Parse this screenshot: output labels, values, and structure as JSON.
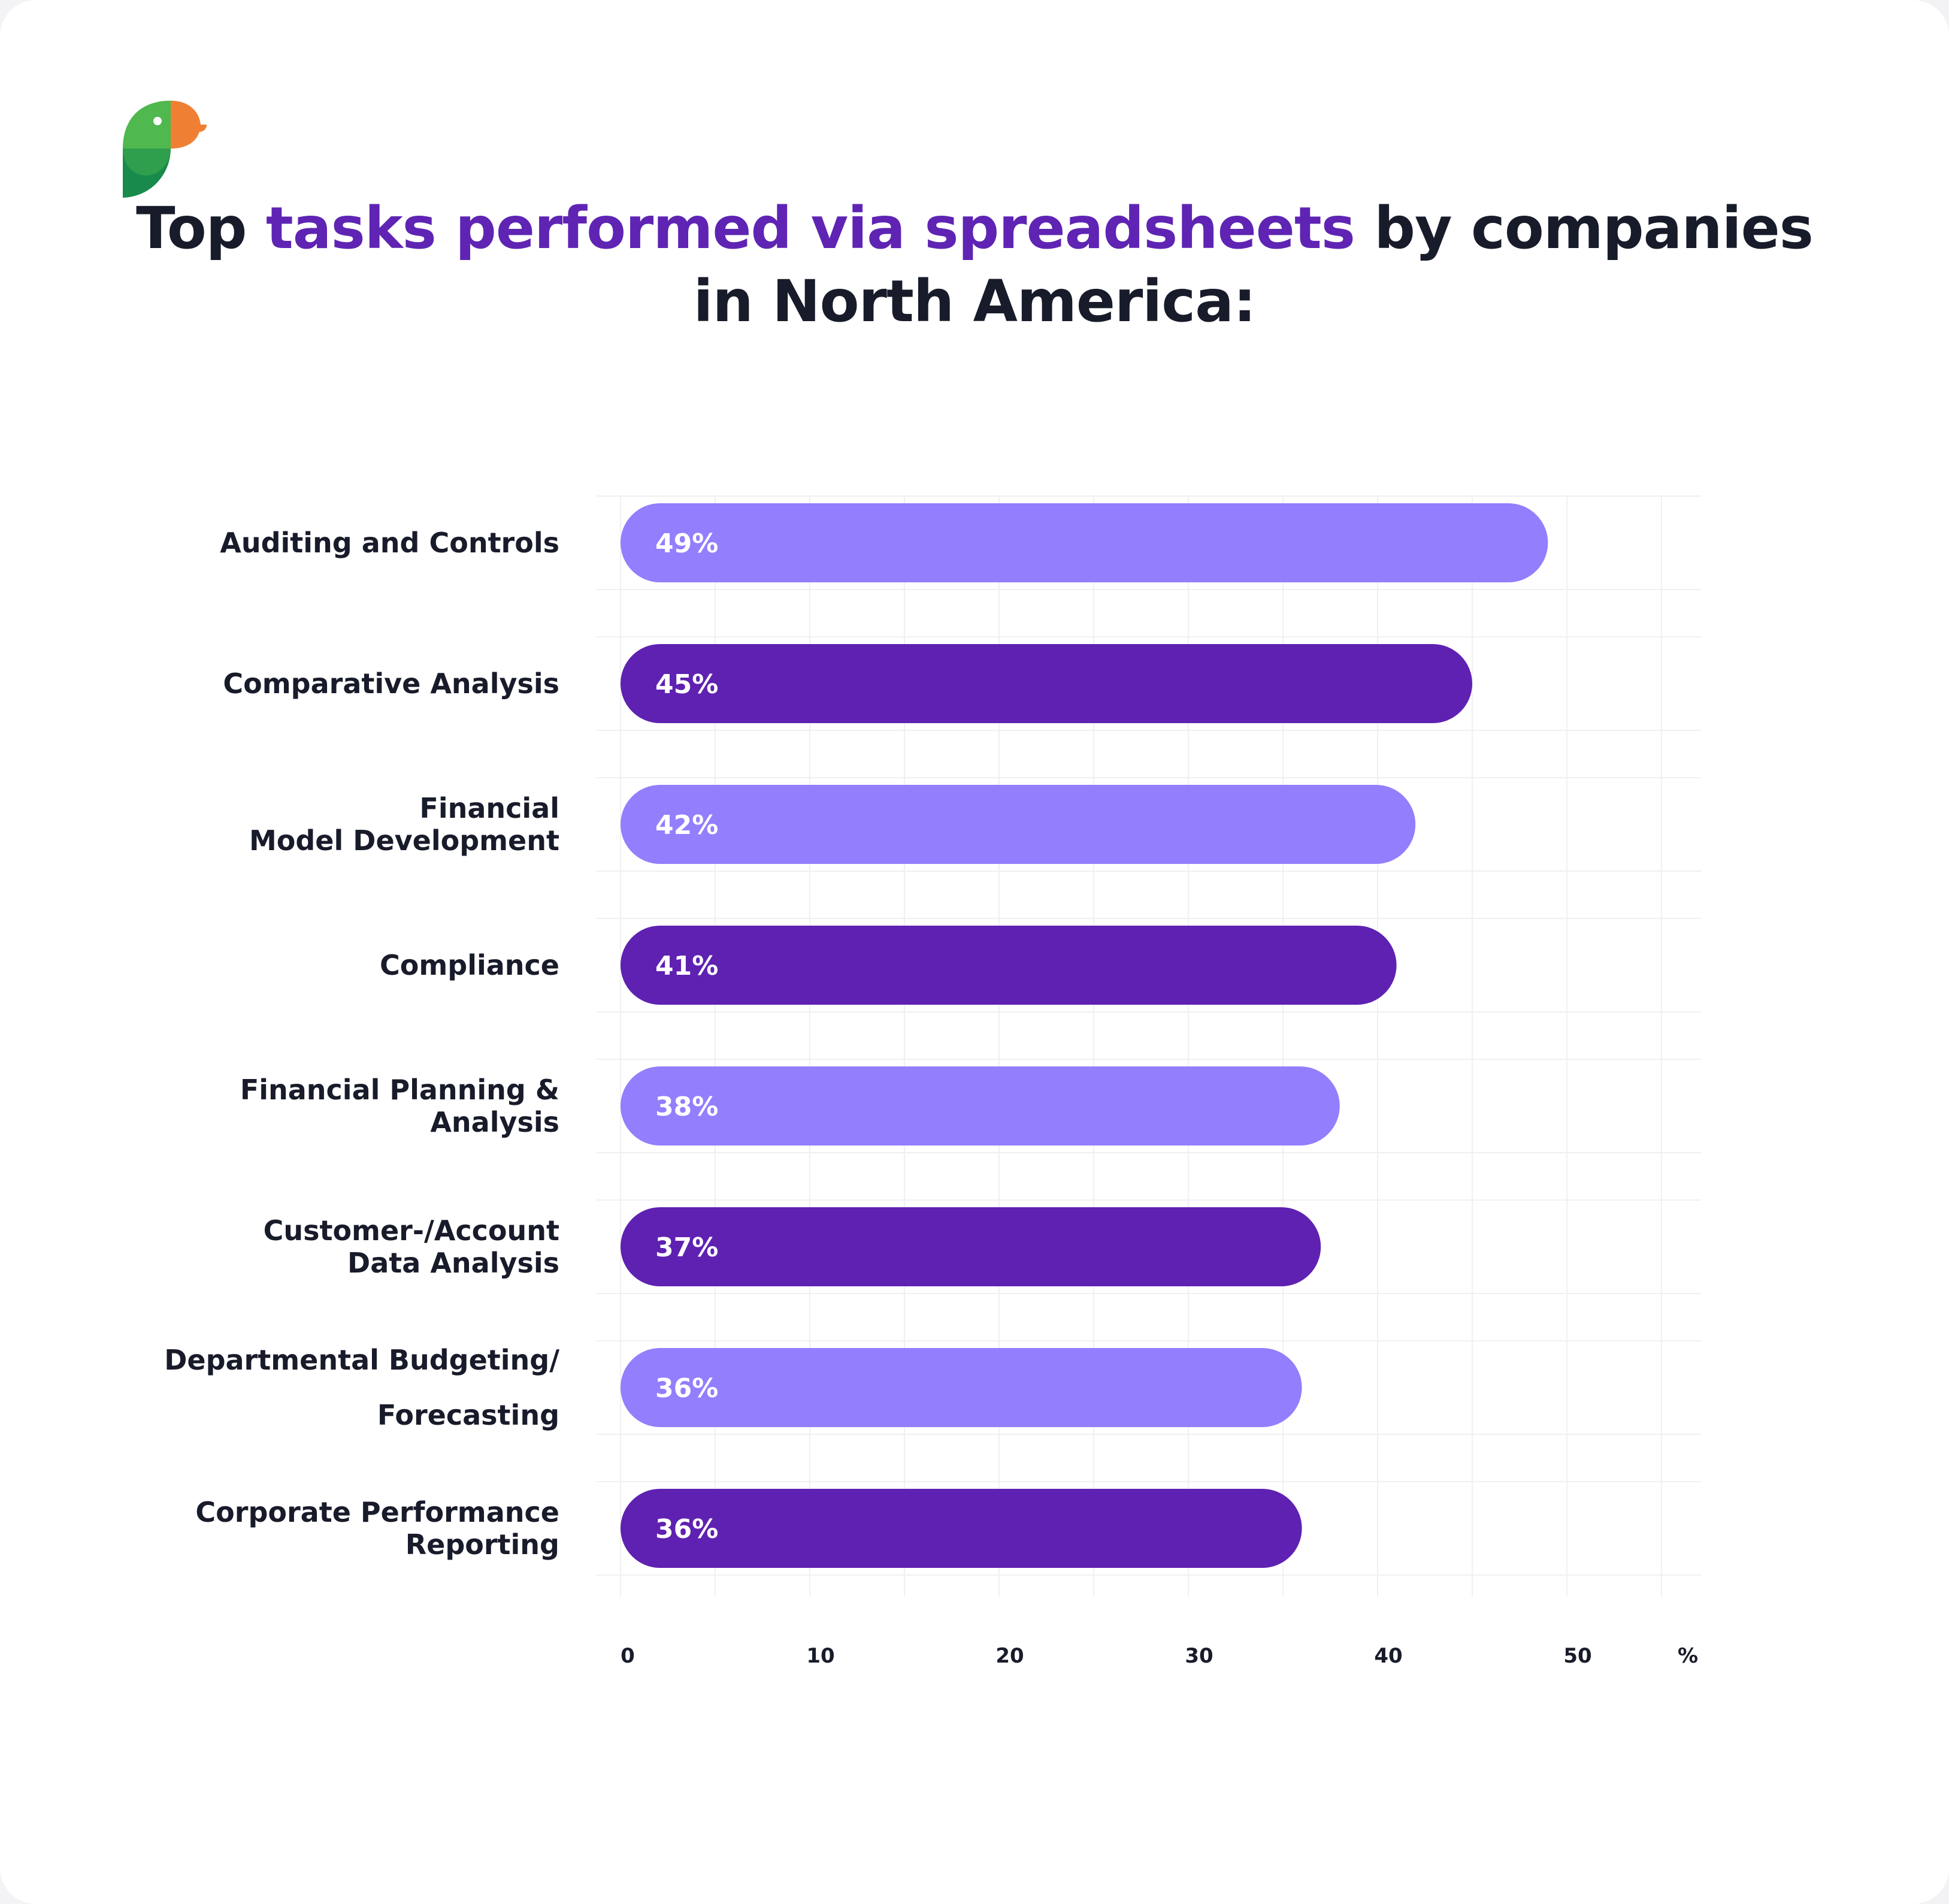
{
  "header": {
    "title_part1": "Top ",
    "title_highlight": "tasks performed via spreadsheets",
    "title_part2": " by companies",
    "title_line2": "in North America:",
    "logo_icon": "parrot-logo-icon"
  },
  "colors": {
    "light_bar": "#937efd",
    "dark_bar": "#5f21b1",
    "title_highlight": "#5f24b3",
    "text": "#181b2a",
    "logo_green": "#4fb84f",
    "logo_dark_green": "#178a4c",
    "logo_orange": "#ef8033"
  },
  "chart_data": {
    "type": "bar",
    "orientation": "horizontal",
    "categories": [
      [
        "Auditing and Controls"
      ],
      [
        "Comparative Analysis"
      ],
      [
        "Financial",
        "Model Development"
      ],
      [
        "Compliance"
      ],
      [
        "Financial Planning &",
        "Analysis"
      ],
      [
        "Customer-/Account",
        "Data Analysis"
      ],
      [
        "Departmental Budgeting/",
        "Forecasting"
      ],
      [
        "Corporate Performance",
        "Reporting"
      ]
    ],
    "values": [
      49,
      45,
      42,
      41,
      38,
      37,
      36,
      36
    ],
    "value_labels": [
      "49%",
      "45%",
      "42%",
      "41%",
      "38%",
      "37%",
      "36%",
      "36%"
    ],
    "xticks": [
      "0",
      "10",
      "20",
      "30",
      "40",
      "50"
    ],
    "x_unit_label": "%",
    "xlim": [
      0,
      57
    ],
    "grid": true,
    "bar_colors": [
      "light",
      "dark",
      "light",
      "dark",
      "light",
      "dark",
      "light",
      "dark"
    ]
  }
}
